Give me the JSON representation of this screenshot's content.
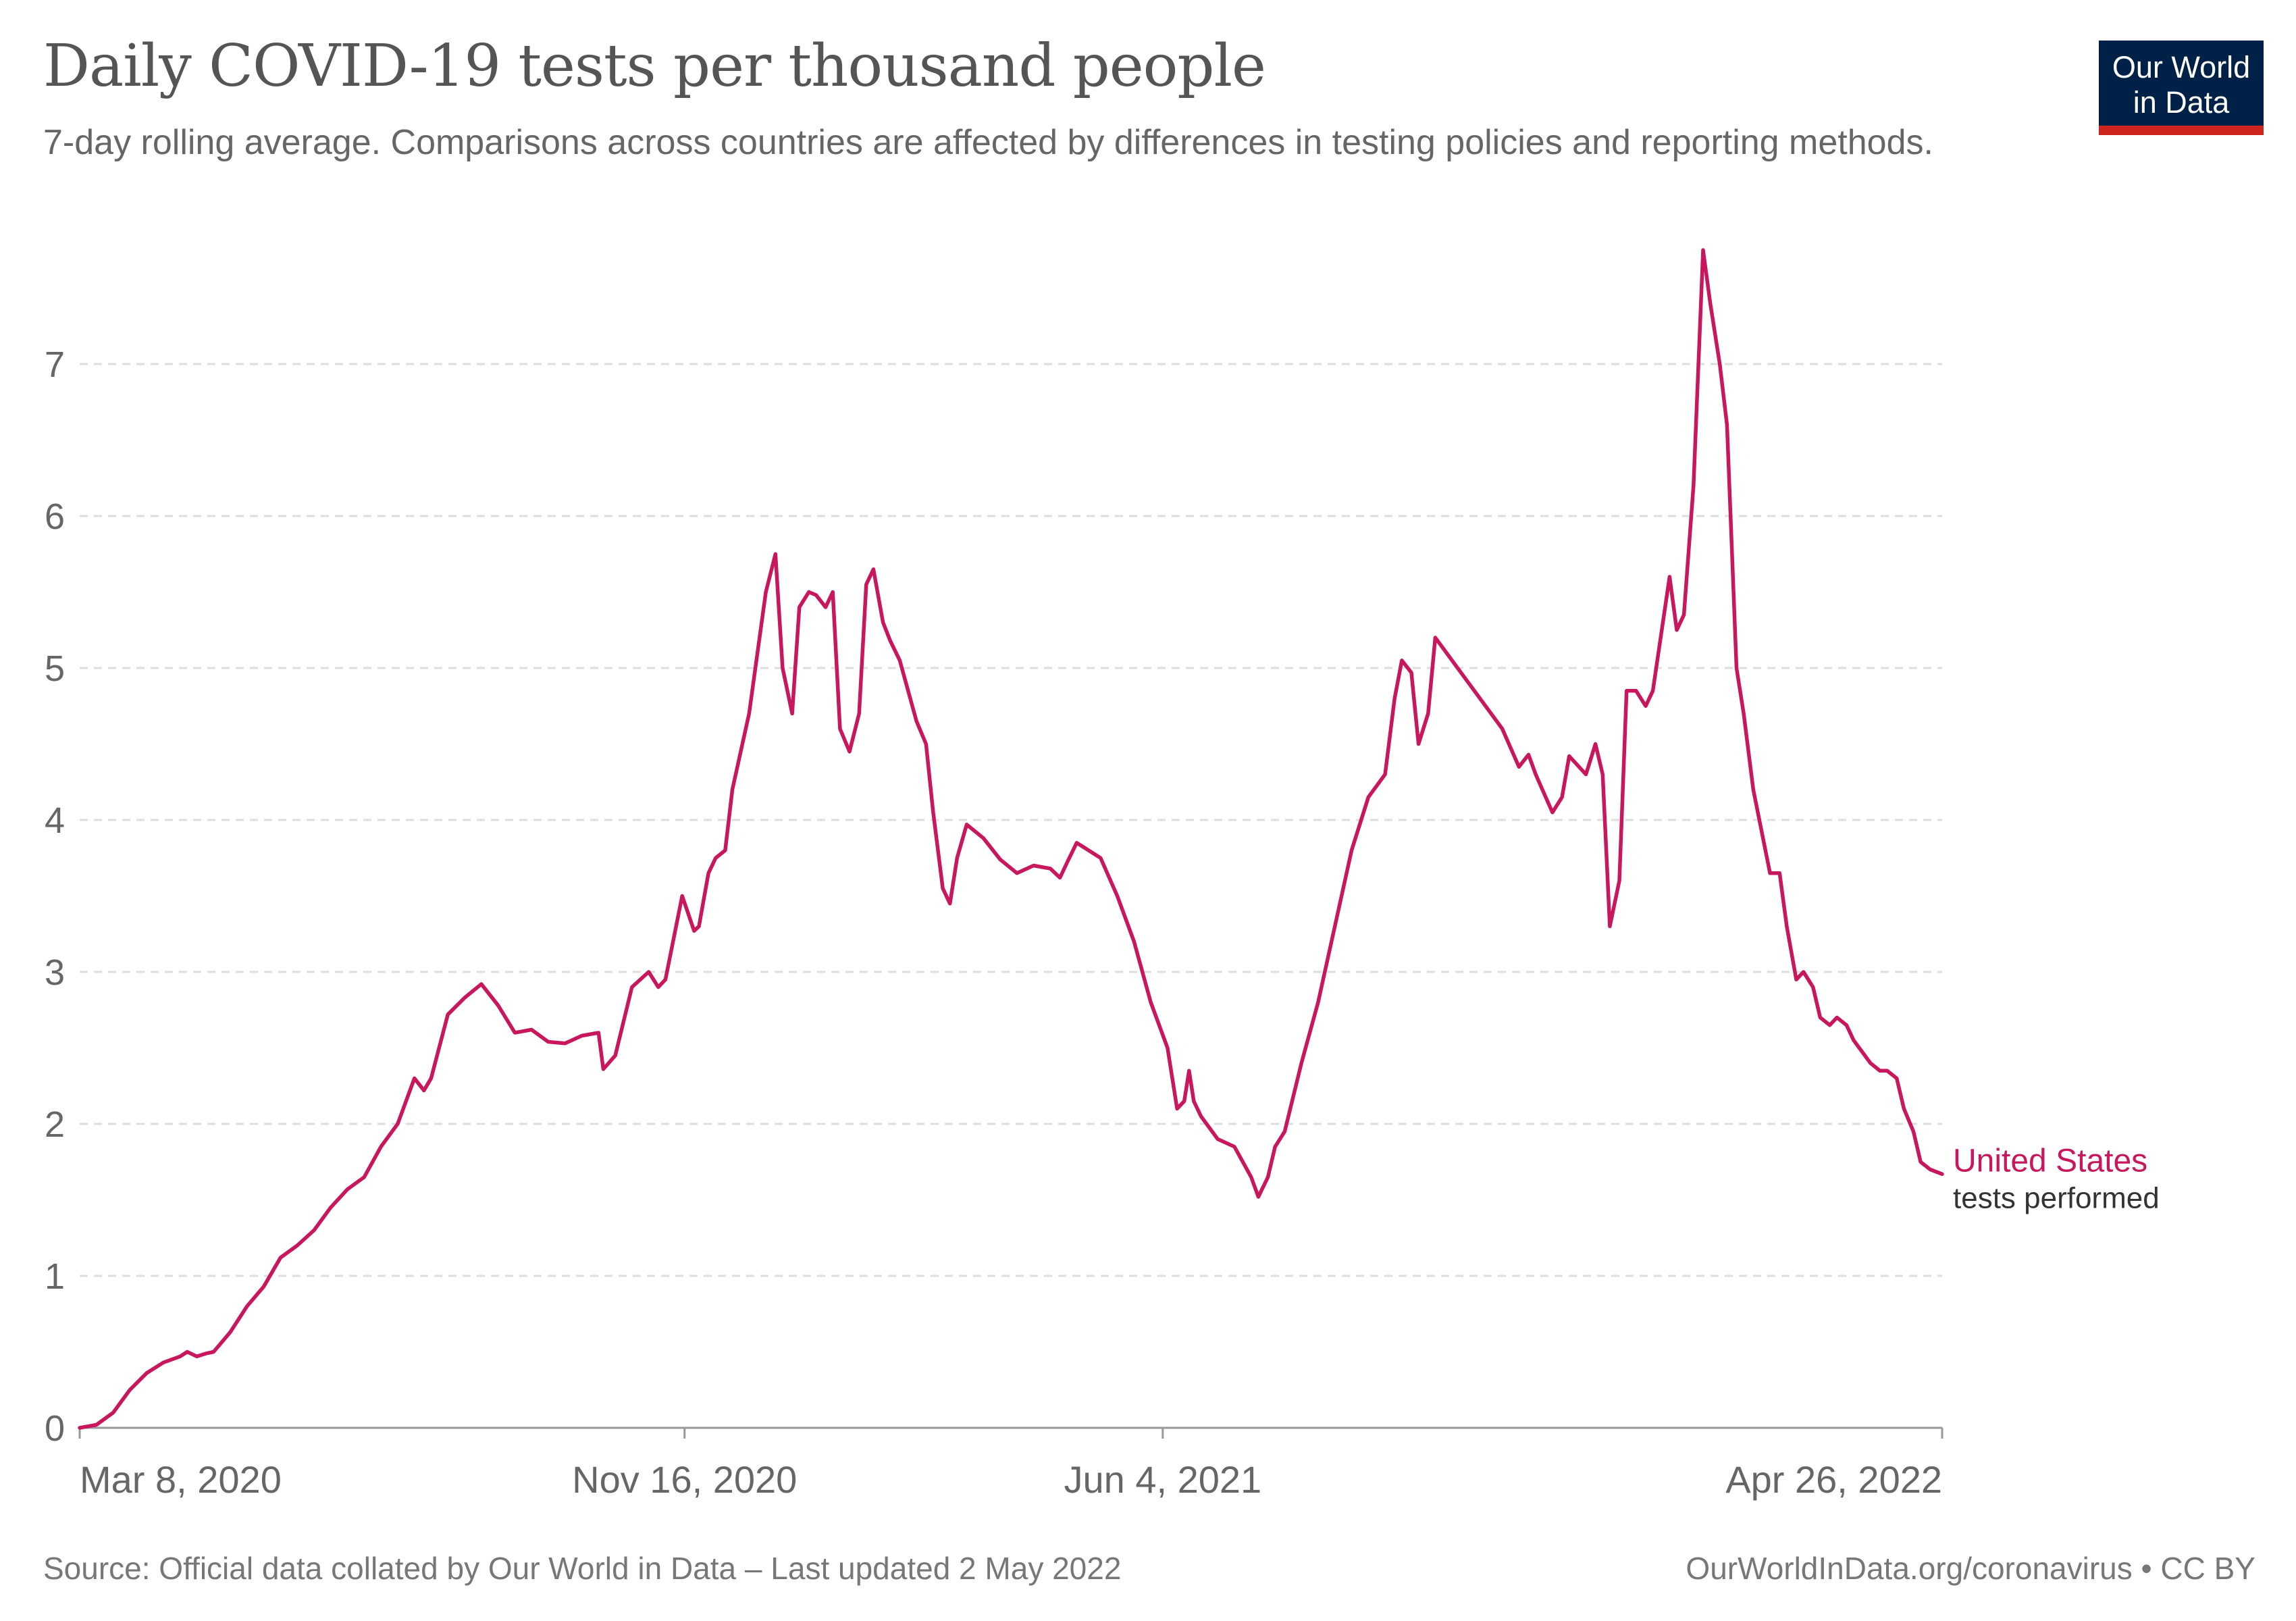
{
  "header": {
    "title": "Daily COVID-19 tests per thousand people",
    "subtitle": "7-day rolling average. Comparisons across countries are affected by differences in testing policies and reporting methods.",
    "logo_line1": "Our World",
    "logo_line2": "in Data"
  },
  "footer": {
    "source": "Source: Official data collated by Our World in Data – Last updated 2 May 2022",
    "license": "OurWorldInData.org/coronavirus • CC BY"
  },
  "colors": {
    "series": "#c8175d",
    "grid": "#dddddd",
    "axis": "#666666",
    "logo_bg": "#002147",
    "logo_bar": "#ce261e"
  },
  "chart_data": {
    "type": "line",
    "title": "Daily COVID-19 tests per thousand people",
    "subtitle": "7-day rolling average. Comparisons across countries are affected by differences in testing policies and reporting methods.",
    "xlabel": "",
    "ylabel": "",
    "x_range": [
      "2020-03-08",
      "2022-04-26"
    ],
    "ylim": [
      0,
      7.8
    ],
    "y_ticks": [
      0,
      1,
      2,
      3,
      4,
      5,
      6,
      7
    ],
    "x_ticks": [
      {
        "date": "2020-03-08",
        "label": "Mar 8, 2020"
      },
      {
        "date": "2020-11-16",
        "label": "Nov 16, 2020"
      },
      {
        "date": "2021-06-04",
        "label": "Jun 4, 2021"
      },
      {
        "date": "2022-04-26",
        "label": "Apr 26, 2022"
      }
    ],
    "grid": "horizontal dashed",
    "legend": "inline label at line end (right)",
    "series": [
      {
        "name": "United States",
        "sublabel": "tests performed",
        "color": "#c8175d",
        "points": [
          [
            "2020-03-08",
            0.0
          ],
          [
            "2020-03-15",
            0.02
          ],
          [
            "2020-03-22",
            0.1
          ],
          [
            "2020-03-29",
            0.25
          ],
          [
            "2020-04-05",
            0.36
          ],
          [
            "2020-04-12",
            0.43
          ],
          [
            "2020-04-19",
            0.47
          ],
          [
            "2020-04-22",
            0.5
          ],
          [
            "2020-04-26",
            0.47
          ],
          [
            "2020-04-30",
            0.49
          ],
          [
            "2020-05-03",
            0.5
          ],
          [
            "2020-05-10",
            0.63
          ],
          [
            "2020-05-17",
            0.8
          ],
          [
            "2020-05-24",
            0.93
          ],
          [
            "2020-05-31",
            1.12
          ],
          [
            "2020-06-07",
            1.2
          ],
          [
            "2020-06-14",
            1.3
          ],
          [
            "2020-06-21",
            1.45
          ],
          [
            "2020-06-28",
            1.57
          ],
          [
            "2020-07-05",
            1.65
          ],
          [
            "2020-07-12",
            1.85
          ],
          [
            "2020-07-19",
            2.0
          ],
          [
            "2020-07-26",
            2.3
          ],
          [
            "2020-07-30",
            2.22
          ],
          [
            "2020-08-02",
            2.3
          ],
          [
            "2020-08-09",
            2.72
          ],
          [
            "2020-08-16",
            2.83
          ],
          [
            "2020-08-23",
            2.92
          ],
          [
            "2020-08-30",
            2.78
          ],
          [
            "2020-09-06",
            2.6
          ],
          [
            "2020-09-13",
            2.62
          ],
          [
            "2020-09-20",
            2.54
          ],
          [
            "2020-09-27",
            2.53
          ],
          [
            "2020-10-04",
            2.58
          ],
          [
            "2020-10-11",
            2.6
          ],
          [
            "2020-10-13",
            2.36
          ],
          [
            "2020-10-18",
            2.45
          ],
          [
            "2020-10-25",
            2.9
          ],
          [
            "2020-11-01",
            3.0
          ],
          [
            "2020-11-05",
            2.9
          ],
          [
            "2020-11-08",
            2.95
          ],
          [
            "2020-11-15",
            3.5
          ],
          [
            "2020-11-20",
            3.27
          ],
          [
            "2020-11-22",
            3.3
          ],
          [
            "2020-11-26",
            3.65
          ],
          [
            "2020-11-29",
            3.75
          ],
          [
            "2020-12-03",
            3.8
          ],
          [
            "2020-12-06",
            4.2
          ],
          [
            "2020-12-13",
            4.7
          ],
          [
            "2020-12-20",
            5.5
          ],
          [
            "2020-12-24",
            5.75
          ],
          [
            "2020-12-27",
            5.0
          ],
          [
            "2020-12-31",
            4.7
          ],
          [
            "2021-01-03",
            5.4
          ],
          [
            "2021-01-07",
            5.5
          ],
          [
            "2021-01-10",
            5.48
          ],
          [
            "2021-01-14",
            5.4
          ],
          [
            "2021-01-17",
            5.5
          ],
          [
            "2021-01-20",
            4.6
          ],
          [
            "2021-01-24",
            4.45
          ],
          [
            "2021-01-28",
            4.7
          ],
          [
            "2021-01-31",
            5.55
          ],
          [
            "2021-02-03",
            5.65
          ],
          [
            "2021-02-07",
            5.3
          ],
          [
            "2021-02-10",
            5.18
          ],
          [
            "2021-02-14",
            5.05
          ],
          [
            "2021-02-21",
            4.65
          ],
          [
            "2021-02-25",
            4.5
          ],
          [
            "2021-02-28",
            4.05
          ],
          [
            "2021-03-04",
            3.55
          ],
          [
            "2021-03-07",
            3.45
          ],
          [
            "2021-03-10",
            3.75
          ],
          [
            "2021-03-14",
            3.97
          ],
          [
            "2021-03-21",
            3.88
          ],
          [
            "2021-03-28",
            3.74
          ],
          [
            "2021-04-04",
            3.65
          ],
          [
            "2021-04-11",
            3.7
          ],
          [
            "2021-04-18",
            3.68
          ],
          [
            "2021-04-22",
            3.62
          ],
          [
            "2021-04-25",
            3.72
          ],
          [
            "2021-04-29",
            3.85
          ],
          [
            "2021-05-02",
            3.82
          ],
          [
            "2021-05-09",
            3.75
          ],
          [
            "2021-05-16",
            3.5
          ],
          [
            "2021-05-23",
            3.2
          ],
          [
            "2021-05-30",
            2.8
          ],
          [
            "2021-06-06",
            2.5
          ],
          [
            "2021-06-10",
            2.1
          ],
          [
            "2021-06-13",
            2.15
          ],
          [
            "2021-06-15",
            2.35
          ],
          [
            "2021-06-17",
            2.15
          ],
          [
            "2021-06-20",
            2.05
          ],
          [
            "2021-06-27",
            1.9
          ],
          [
            "2021-07-04",
            1.85
          ],
          [
            "2021-07-11",
            1.65
          ],
          [
            "2021-07-14",
            1.52
          ],
          [
            "2021-07-18",
            1.65
          ],
          [
            "2021-07-21",
            1.85
          ],
          [
            "2021-07-25",
            1.95
          ],
          [
            "2021-08-01",
            2.4
          ],
          [
            "2021-08-08",
            2.8
          ],
          [
            "2021-08-15",
            3.3
          ],
          [
            "2021-08-22",
            3.8
          ],
          [
            "2021-08-29",
            4.15
          ],
          [
            "2021-09-05",
            4.3
          ],
          [
            "2021-09-09",
            4.8
          ],
          [
            "2021-09-12",
            5.05
          ],
          [
            "2021-09-16",
            4.97
          ],
          [
            "2021-09-19",
            4.5
          ],
          [
            "2021-09-23",
            4.7
          ],
          [
            "2021-09-26",
            5.2
          ],
          [
            "2021-10-03",
            5.05
          ],
          [
            "2021-10-10",
            4.9
          ],
          [
            "2021-10-17",
            4.75
          ],
          [
            "2021-10-24",
            4.6
          ],
          [
            "2021-10-31",
            4.35
          ],
          [
            "2021-11-04",
            4.43
          ],
          [
            "2021-11-07",
            4.3
          ],
          [
            "2021-11-14",
            4.05
          ],
          [
            "2021-11-18",
            4.15
          ],
          [
            "2021-11-21",
            4.42
          ],
          [
            "2021-11-28",
            4.3
          ],
          [
            "2021-12-02",
            4.5
          ],
          [
            "2021-12-05",
            4.3
          ],
          [
            "2021-12-08",
            3.3
          ],
          [
            "2021-12-12",
            3.6
          ],
          [
            "2021-12-15",
            4.85
          ],
          [
            "2021-12-19",
            4.85
          ],
          [
            "2021-12-23",
            4.75
          ],
          [
            "2021-12-26",
            4.85
          ],
          [
            "2022-01-02",
            5.6
          ],
          [
            "2022-01-05",
            5.25
          ],
          [
            "2022-01-08",
            5.35
          ],
          [
            "2022-01-12",
            6.2
          ],
          [
            "2022-01-16",
            7.75
          ],
          [
            "2022-01-19",
            7.4
          ],
          [
            "2022-01-23",
            7.0
          ],
          [
            "2022-01-26",
            6.6
          ],
          [
            "2022-01-30",
            5.0
          ],
          [
            "2022-02-02",
            4.7
          ],
          [
            "2022-02-06",
            4.2
          ],
          [
            "2022-02-13",
            3.65
          ],
          [
            "2022-02-17",
            3.65
          ],
          [
            "2022-02-20",
            3.3
          ],
          [
            "2022-02-24",
            2.95
          ],
          [
            "2022-02-27",
            3.0
          ],
          [
            "2022-03-03",
            2.9
          ],
          [
            "2022-03-06",
            2.7
          ],
          [
            "2022-03-10",
            2.65
          ],
          [
            "2022-03-13",
            2.7
          ],
          [
            "2022-03-17",
            2.65
          ],
          [
            "2022-03-20",
            2.55
          ],
          [
            "2022-03-27",
            2.4
          ],
          [
            "2022-03-31",
            2.35
          ],
          [
            "2022-04-03",
            2.35
          ],
          [
            "2022-04-07",
            2.3
          ],
          [
            "2022-04-10",
            2.1
          ],
          [
            "2022-04-14",
            1.95
          ],
          [
            "2022-04-17",
            1.75
          ],
          [
            "2022-04-21",
            1.7
          ],
          [
            "2022-04-26",
            1.67
          ]
        ]
      }
    ]
  }
}
